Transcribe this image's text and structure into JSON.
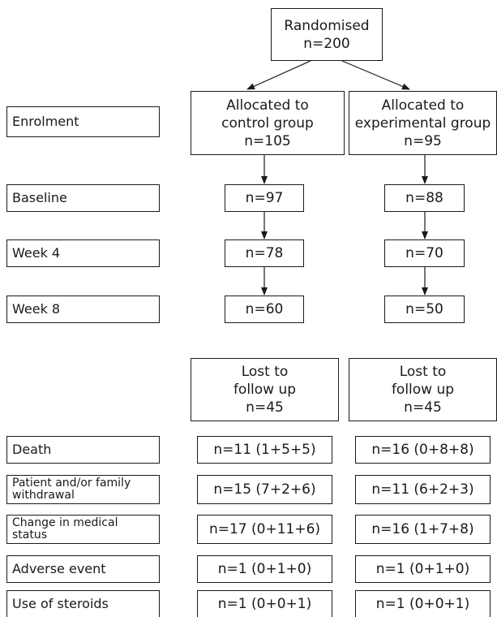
{
  "randomised": {
    "title": "Randomised",
    "n": "n=200"
  },
  "groups": {
    "control": {
      "line1": "Allocated to",
      "line2": "control group",
      "n": "n=105"
    },
    "experimental": {
      "line1": "Allocated to",
      "line2": "experimental group",
      "n": "n=95"
    }
  },
  "stages": {
    "enrolment": "Enrolment",
    "baseline": {
      "label": "Baseline",
      "control": "n=97",
      "experimental": "n=88"
    },
    "week4": {
      "label": "Week 4",
      "control": "n=78",
      "experimental": "n=70"
    },
    "week8": {
      "label": "Week 8",
      "control": "n=60",
      "experimental": "n=50"
    }
  },
  "lost": {
    "line1": "Lost to",
    "line2": "follow up",
    "control_n": "n=45",
    "experimental_n": "n=45"
  },
  "reasons": [
    {
      "label": "Death",
      "control": "n=11 (1+5+5)",
      "experimental": "n=16 (0+8+8)"
    },
    {
      "label": "Patient and/or family\nwithdrawal",
      "control": "n=15 (7+2+6)",
      "experimental": "n=11 (6+2+3)"
    },
    {
      "label": "Change in medical\nstatus",
      "control": "n=17 (0+11+6)",
      "experimental": "n=16 (1+7+8)"
    },
    {
      "label": "Adverse event",
      "control": "n=1 (0+1+0)",
      "experimental": "n=1 (0+1+0)"
    },
    {
      "label": "Use of steroids",
      "control": "n=1 (0+0+1)",
      "experimental": "n=1 (0+0+1)"
    }
  ]
}
